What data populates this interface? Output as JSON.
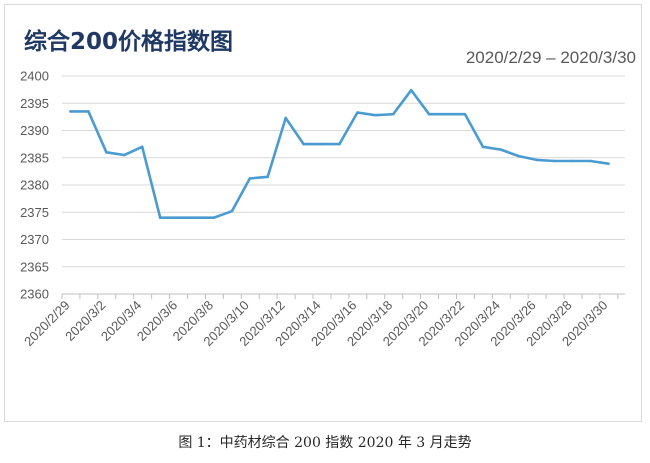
{
  "chart_data": {
    "type": "line",
    "title": "综合200价格指数图",
    "date_range": "2020/2/29  –  2020/3/30",
    "xlabel": "",
    "ylabel": "",
    "ylim": [
      2360,
      2400
    ],
    "yticks": [
      2360,
      2365,
      2370,
      2375,
      2380,
      2385,
      2390,
      2395,
      2400
    ],
    "x_tick_labels": [
      "2020/2/29",
      "2020/3/2",
      "2020/3/4",
      "2020/3/6",
      "2020/3/8",
      "2020/3/10",
      "2020/3/12",
      "2020/3/14",
      "2020/3/16",
      "2020/3/18",
      "2020/3/20",
      "2020/3/22",
      "2020/3/24",
      "2020/3/26",
      "2020/3/28",
      "2020/3/30"
    ],
    "grid": true,
    "legend": "none",
    "line_color": "#4a9bd1",
    "points": [
      {
        "x": "2020/2/29",
        "y": 2393.5
      },
      {
        "x": "2020/3/1",
        "y": 2393.5
      },
      {
        "x": "2020/3/2",
        "y": 2386.0
      },
      {
        "x": "2020/3/3",
        "y": 2385.5
      },
      {
        "x": "2020/3/4",
        "y": 2387.0
      },
      {
        "x": "2020/3/5",
        "y": 2374.0
      },
      {
        "x": "2020/3/6",
        "y": 2374.0
      },
      {
        "x": "2020/3/7",
        "y": 2374.0
      },
      {
        "x": "2020/3/8",
        "y": 2374.0
      },
      {
        "x": "2020/3/9",
        "y": 2375.2
      },
      {
        "x": "2020/3/10",
        "y": 2381.2
      },
      {
        "x": "2020/3/11",
        "y": 2381.5
      },
      {
        "x": "2020/3/12",
        "y": 2392.3
      },
      {
        "x": "2020/3/13",
        "y": 2387.5
      },
      {
        "x": "2020/3/14",
        "y": 2387.5
      },
      {
        "x": "2020/3/15",
        "y": 2387.5
      },
      {
        "x": "2020/3/16",
        "y": 2393.3
      },
      {
        "x": "2020/3/17",
        "y": 2392.8
      },
      {
        "x": "2020/3/18",
        "y": 2393.0
      },
      {
        "x": "2020/3/19",
        "y": 2397.4
      },
      {
        "x": "2020/3/20",
        "y": 2393.0
      },
      {
        "x": "2020/3/21",
        "y": 2393.0
      },
      {
        "x": "2020/3/22",
        "y": 2393.0
      },
      {
        "x": "2020/3/23",
        "y": 2387.0
      },
      {
        "x": "2020/3/24",
        "y": 2386.5
      },
      {
        "x": "2020/3/25",
        "y": 2385.3
      },
      {
        "x": "2020/3/26",
        "y": 2384.6
      },
      {
        "x": "2020/3/27",
        "y": 2384.4
      },
      {
        "x": "2020/3/28",
        "y": 2384.4
      },
      {
        "x": "2020/3/29",
        "y": 2384.4
      },
      {
        "x": "2020/3/30",
        "y": 2383.9
      }
    ]
  },
  "caption": "图 1：中药材综合 200 指数 2020 年 3 月走势"
}
